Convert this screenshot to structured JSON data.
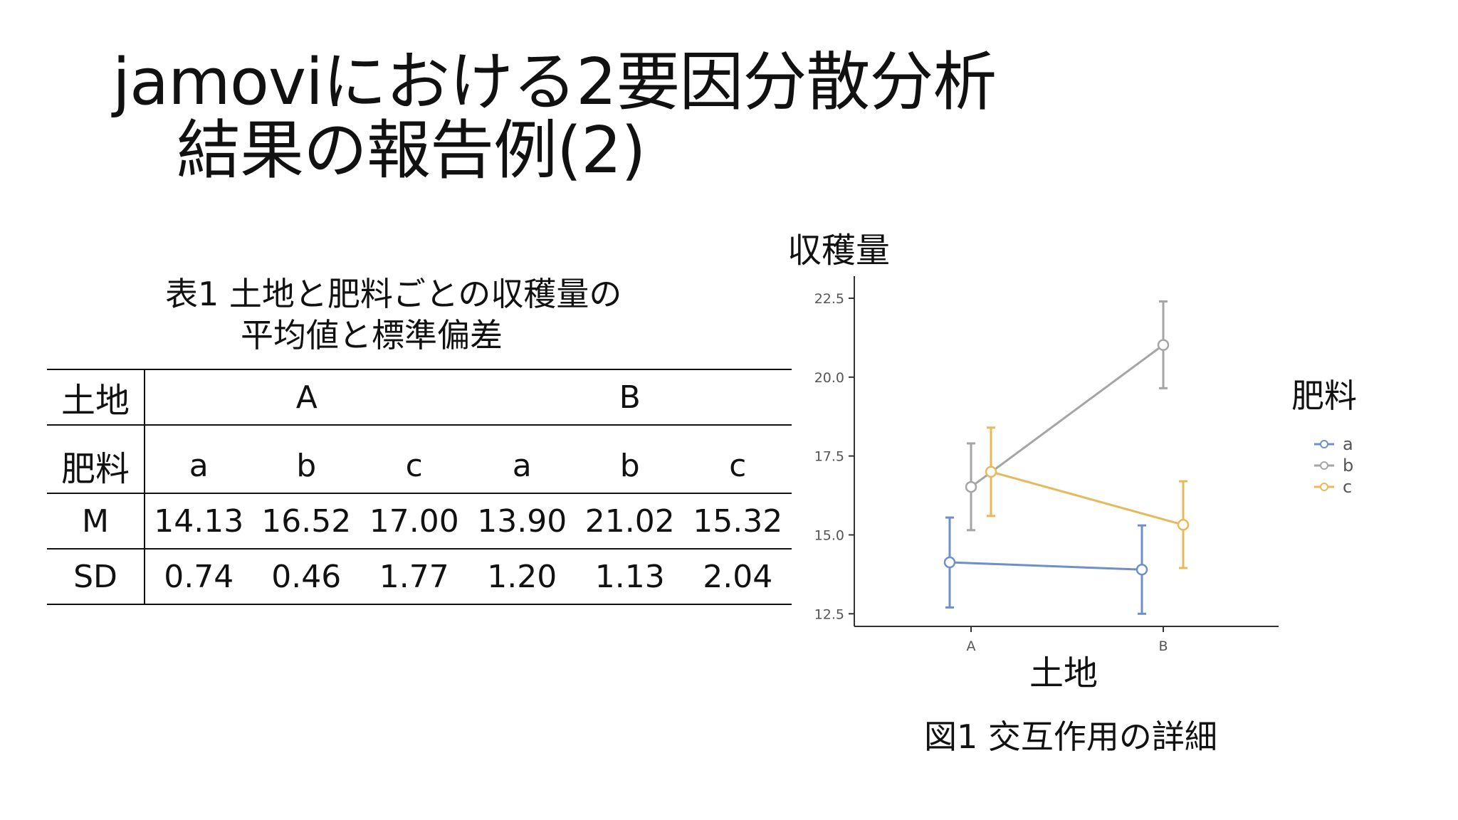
{
  "slide": {
    "title_line1": "jamoviにおける2要因分散分析",
    "title_line2": "結果の報告例(2)"
  },
  "table": {
    "caption_line1": "表1 土地と肥料ごとの収穫量の",
    "caption_line2": "平均値と標準偏差",
    "land_header": "土地",
    "land_values": [
      "A",
      "B"
    ],
    "fertilizer_header": "肥料",
    "fertilizer_values": [
      "a",
      "b",
      "c",
      "a",
      "b",
      "c"
    ],
    "rows": [
      {
        "label": "M",
        "values": [
          "14.13",
          "16.52",
          "17.00",
          "13.90",
          "21.02",
          "15.32"
        ]
      },
      {
        "label": "SD",
        "values": [
          "0.74",
          "0.46",
          "1.77",
          "1.20",
          "1.13",
          "2.04"
        ]
      }
    ]
  },
  "figure": {
    "caption": "図1 交互作用の詳細"
  },
  "chart_data": {
    "type": "line",
    "title": "",
    "xlabel": "土地",
    "ylabel": "収穫量",
    "categories": [
      "A",
      "B"
    ],
    "ylim": [
      12.1,
      23.2
    ],
    "yticks": [
      "12.5",
      "15.0",
      "17.5",
      "20.0",
      "22.5"
    ],
    "grid": false,
    "legend_title": "肥料",
    "legend_position": "right",
    "series": [
      {
        "name": "a",
        "color": "#6f8fc8",
        "values": [
          14.13,
          13.9
        ],
        "err_low": [
          12.7,
          12.5
        ],
        "err_high": [
          15.55,
          15.3
        ]
      },
      {
        "name": "b",
        "color": "#a5a5a5",
        "values": [
          16.52,
          21.02
        ],
        "err_low": [
          15.15,
          19.65
        ],
        "err_high": [
          17.9,
          22.4
        ]
      },
      {
        "name": "c",
        "color": "#e5b95c",
        "values": [
          17.0,
          15.32
        ],
        "err_low": [
          15.6,
          13.95
        ],
        "err_high": [
          18.4,
          16.7
        ]
      }
    ]
  }
}
